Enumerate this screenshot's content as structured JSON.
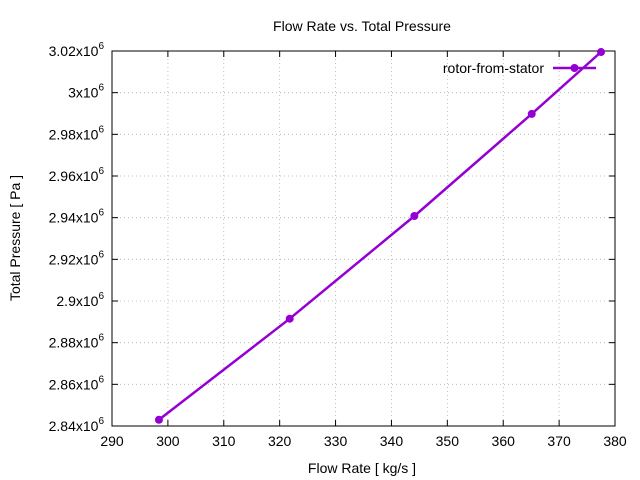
{
  "chart_data": {
    "type": "line",
    "title": "Flow Rate vs. Total Pressure",
    "xlabel": "Flow Rate [ kg/s ]",
    "ylabel": "Total Pressure [ Pa ]",
    "xlim": [
      290,
      380
    ],
    "ylim": [
      2840000,
      3020000
    ],
    "grid": true,
    "legend": "top-right",
    "x_ticks": [
      290,
      300,
      310,
      320,
      330,
      340,
      350,
      360,
      370,
      380
    ],
    "x_tick_labels": [
      "290",
      "300",
      "310",
      "320",
      "330",
      "340",
      "350",
      "360",
      "370",
      "380"
    ],
    "y_ticks": [
      2840000,
      2860000,
      2880000,
      2900000,
      2920000,
      2940000,
      2960000,
      2980000,
      3000000,
      3020000
    ],
    "y_tick_labels": [
      {
        "mantissa": "2.84x10",
        "exp": "6"
      },
      {
        "mantissa": "2.86x10",
        "exp": "6"
      },
      {
        "mantissa": "2.88x10",
        "exp": "6"
      },
      {
        "mantissa": "2.9x10",
        "exp": "6"
      },
      {
        "mantissa": "2.92x10",
        "exp": "6"
      },
      {
        "mantissa": "2.94x10",
        "exp": "6"
      },
      {
        "mantissa": "2.96x10",
        "exp": "6"
      },
      {
        "mantissa": "2.98x10",
        "exp": "6"
      },
      {
        "mantissa": "3x10",
        "exp": "6"
      },
      {
        "mantissa": "3.02x10",
        "exp": "6"
      }
    ],
    "series": [
      {
        "name": "rotor-from-stator",
        "color": "#9400d3",
        "x": [
          298.4,
          321.8,
          344.1,
          365.1,
          377.5
        ],
        "y": [
          2843000,
          2891500,
          2940800,
          2989800,
          3019500
        ]
      }
    ]
  }
}
